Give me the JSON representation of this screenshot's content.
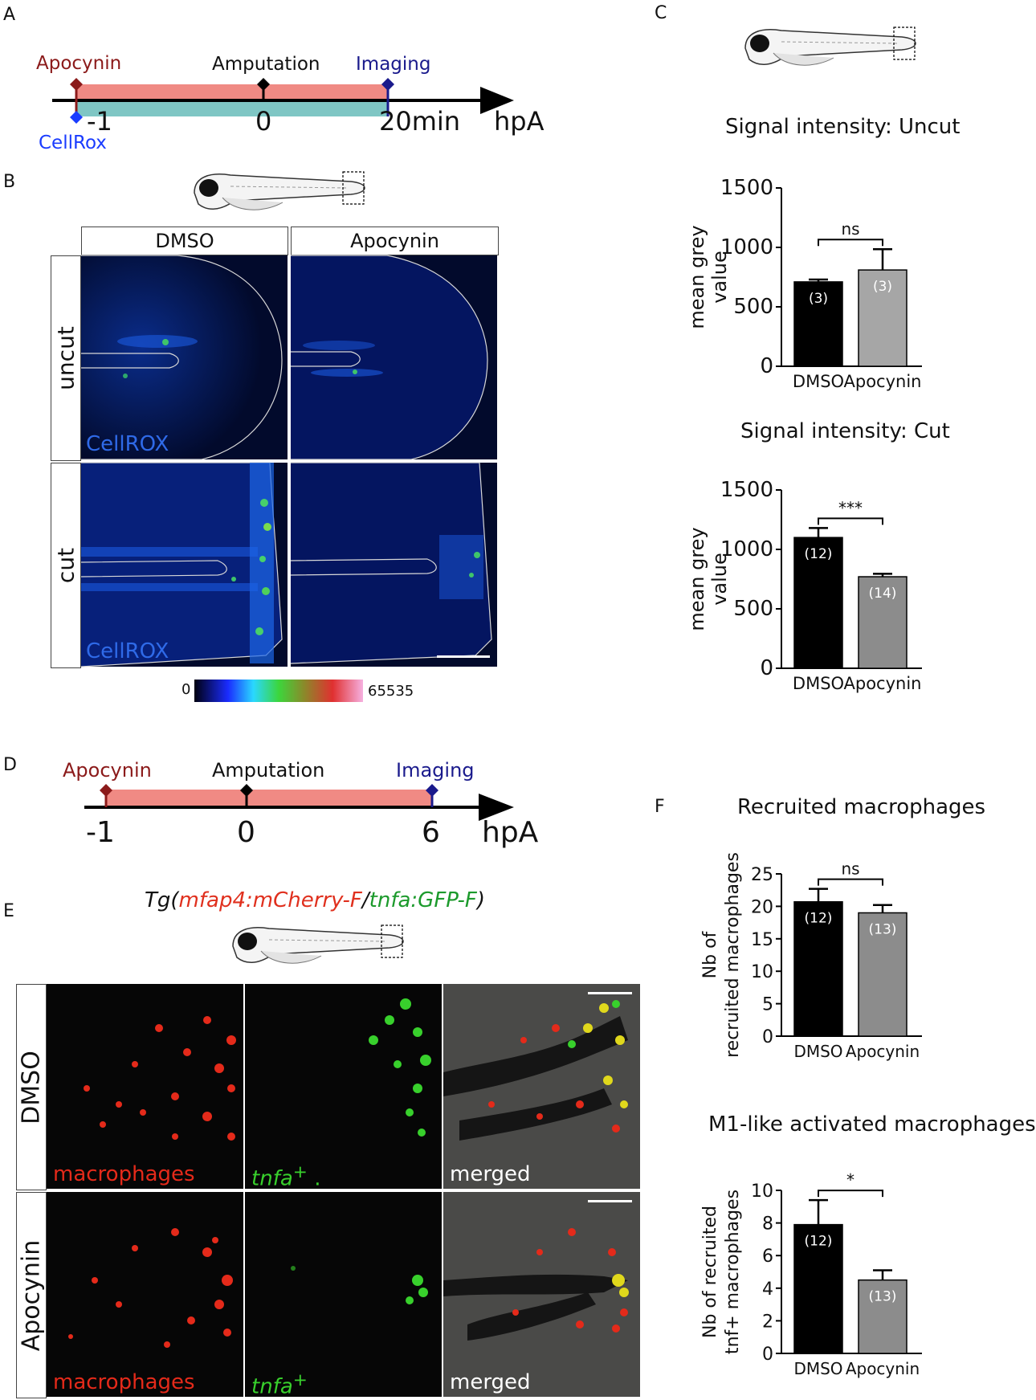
{
  "panels": {
    "A": "A",
    "B": "B",
    "C": "C",
    "D": "D",
    "E": "E",
    "F": "F"
  },
  "timelineA": {
    "labels": {
      "apocynin": "Apocynin",
      "amputation": "Amputation",
      "imaging": "Imaging",
      "cellrox": "CellRox"
    },
    "ticks": {
      "t1": "-1",
      "t2": "0",
      "t3": "20min",
      "unit": "hpA"
    },
    "colors": {
      "apocynin": "#8b1a1a",
      "imaging": "#1a1a8c",
      "cellrox": "#1a3cff",
      "bar_red": "#f08a84",
      "bar_teal": "#7fc6c4"
    }
  },
  "panelB": {
    "columns": [
      "DMSO",
      "Apocynin"
    ],
    "rows": [
      "uncut",
      "cut"
    ],
    "stain": "CellROX",
    "scale_min": "0",
    "scale_max": "65535"
  },
  "timelineD": {
    "labels": {
      "apocynin": "Apocynin",
      "amputation": "Amputation",
      "imaging": "Imaging"
    },
    "ticks": {
      "t1": "-1",
      "t2": "0",
      "t3": "6",
      "unit": "hpA"
    }
  },
  "panelE": {
    "title_prefix": "Tg(",
    "title_red": "mfap4:mCherry-F",
    "title_sep": "/",
    "title_green": "tnfa:GFP-F",
    "title_suffix": ")",
    "rows": [
      "DMSO",
      "Apocynin"
    ],
    "channels": [
      "macrophages",
      "tnfa",
      "merged"
    ],
    "tnfa_sup": "+",
    "tnfa_dot": "."
  },
  "chart_data": [
    {
      "type": "bar",
      "title": "Signal intensity: Uncut",
      "categories": [
        "DMSO",
        "Apocynin"
      ],
      "values": [
        710,
        810
      ],
      "errors": [
        20,
        175
      ],
      "n_labels": [
        "(3)",
        "(3)"
      ],
      "significance": "ns",
      "ylabel": "mean grey value",
      "ylim": [
        0,
        1500
      ],
      "yticks": [
        0,
        500,
        1000,
        1500
      ],
      "colors": [
        "#000000",
        "#a6a6a6"
      ]
    },
    {
      "type": "bar",
      "title": "Signal intensity: Cut",
      "categories": [
        "DMSO",
        "Apocynin"
      ],
      "values": [
        1100,
        770
      ],
      "errors": [
        80,
        25
      ],
      "n_labels": [
        "(12)",
        "(14)"
      ],
      "significance": "***",
      "ylabel": "mean grey value",
      "ylim": [
        0,
        1500
      ],
      "yticks": [
        0,
        500,
        1000,
        1500
      ],
      "colors": [
        "#000000",
        "#8c8c8c"
      ]
    },
    {
      "type": "bar",
      "title": "Recruited macrophages",
      "categories": [
        "DMSO",
        "Apocynin"
      ],
      "values": [
        20.7,
        19.0
      ],
      "errors": [
        2.0,
        1.2
      ],
      "n_labels": [
        "(12)",
        "(13)"
      ],
      "significance": "ns",
      "ylabel": "Nb of recruited macrophages",
      "ylim": [
        0,
        25
      ],
      "yticks": [
        0,
        5,
        10,
        15,
        20,
        25
      ],
      "colors": [
        "#000000",
        "#8c8c8c"
      ]
    },
    {
      "type": "bar",
      "title": "M1-like activated macrophages",
      "categories": [
        "DMSO",
        "Apocynin"
      ],
      "values": [
        7.9,
        4.5
      ],
      "errors": [
        1.5,
        0.6
      ],
      "n_labels": [
        "(12)",
        "(13)"
      ],
      "significance": "*",
      "ylabel": "Nb of recruited tnf+ macrophages",
      "ylim": [
        0,
        10
      ],
      "yticks": [
        0,
        2,
        4,
        6,
        8,
        10
      ],
      "colors": [
        "#000000",
        "#8c8c8c"
      ]
    }
  ]
}
